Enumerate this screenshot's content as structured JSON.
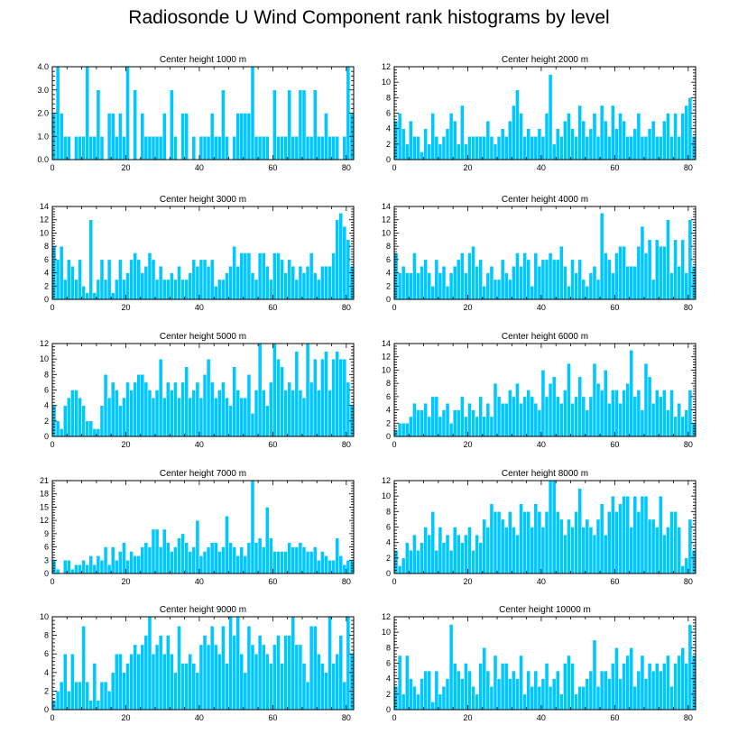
{
  "title": "Radiosonde U Wind Component rank histograms by level",
  "colors": {
    "bar_fill": "#00C8FF",
    "bar_edge": "#ffffff",
    "axis": "#000000"
  },
  "chart_data": [
    {
      "type": "bar",
      "title": "Center height 1000 m",
      "xlim": [
        0,
        82
      ],
      "ylim": [
        0,
        4
      ],
      "yticks": [
        0,
        1,
        2,
        3,
        4
      ],
      "ytick_labels": [
        "0.0",
        "1.0",
        "2.0",
        "3.0",
        "4.0"
      ],
      "xticks": [
        0,
        20,
        40,
        60,
        80
      ],
      "xtick_labels": [
        "0",
        "20",
        "40",
        "60",
        "80"
      ],
      "values": [
        2,
        4,
        2,
        1,
        1,
        0,
        1,
        1,
        1,
        4,
        1,
        1,
        3,
        1,
        0,
        2,
        2,
        1,
        2,
        1,
        4,
        0,
        3,
        0,
        2,
        1,
        1,
        1,
        1,
        1,
        2,
        0,
        3,
        1,
        0,
        2,
        2,
        0,
        1,
        0,
        1,
        1,
        1,
        2,
        1,
        1,
        3,
        1,
        0,
        1,
        2,
        2,
        2,
        2,
        4,
        1,
        1,
        1,
        1,
        0,
        3,
        1,
        1,
        1,
        3,
        1,
        1,
        3,
        3,
        1,
        1,
        3,
        1,
        1,
        2,
        1,
        1,
        1,
        0,
        1,
        4,
        2
      ]
    },
    {
      "type": "bar",
      "title": "Center height 2000 m",
      "xlim": [
        0,
        82
      ],
      "ylim": [
        0,
        12
      ],
      "yticks": [
        0,
        2,
        4,
        6,
        8,
        10,
        12
      ],
      "ytick_labels": [
        "0",
        "2",
        "4",
        "6",
        "8",
        "10",
        "12"
      ],
      "xticks": [
        0,
        20,
        40,
        60,
        80
      ],
      "xtick_labels": [
        "0",
        "20",
        "40",
        "60",
        "80"
      ],
      "values": [
        5,
        6,
        4,
        2,
        5,
        3,
        3,
        1,
        4,
        2,
        6,
        3,
        2,
        3,
        4,
        6,
        5,
        2,
        7,
        2,
        3,
        3,
        3,
        3,
        3,
        5,
        3,
        2,
        3,
        4,
        3,
        5,
        7,
        9,
        6,
        3,
        4,
        3,
        3,
        4,
        3,
        6,
        11,
        2,
        4,
        3,
        5,
        6,
        4,
        3,
        7,
        5,
        3,
        4,
        6,
        3,
        7,
        5,
        3,
        7,
        4,
        6,
        5,
        3,
        3,
        4,
        6,
        3,
        3,
        4,
        5,
        3,
        3,
        5,
        6,
        3,
        6,
        3,
        6,
        7,
        8,
        3
      ]
    },
    {
      "type": "bar",
      "title": "Center height 3000 m",
      "xlim": [
        0,
        82
      ],
      "ylim": [
        0,
        14
      ],
      "yticks": [
        0,
        2,
        4,
        6,
        8,
        10,
        12,
        14
      ],
      "ytick_labels": [
        "0",
        "2",
        "4",
        "6",
        "8",
        "10",
        "12",
        "14"
      ],
      "xticks": [
        0,
        20,
        40,
        60,
        80
      ],
      "xtick_labels": [
        "0",
        "20",
        "40",
        "60",
        "80"
      ],
      "values": [
        8,
        6,
        8,
        3,
        6,
        5,
        3,
        6,
        2,
        1,
        12,
        1,
        3,
        6,
        3,
        6,
        1,
        3,
        6,
        3,
        4,
        6,
        7,
        6,
        4,
        5,
        7,
        6,
        3,
        5,
        3,
        3,
        4,
        3,
        5,
        3,
        3,
        4,
        6,
        5,
        6,
        6,
        5,
        6,
        2,
        3,
        3,
        4,
        5,
        8,
        5,
        7,
        7,
        7,
        4,
        3,
        7,
        7,
        5,
        3,
        7,
        7,
        6,
        4,
        6,
        5,
        3,
        5,
        4,
        5,
        7,
        4,
        3,
        5,
        5,
        5,
        7,
        12,
        13,
        11,
        9,
        5
      ]
    },
    {
      "type": "bar",
      "title": "Center height 4000 m",
      "xlim": [
        0,
        82
      ],
      "ylim": [
        0,
        14
      ],
      "yticks": [
        0,
        2,
        4,
        6,
        8,
        10,
        12,
        14
      ],
      "ytick_labels": [
        "0",
        "2",
        "4",
        "6",
        "8",
        "10",
        "12",
        "14"
      ],
      "xticks": [
        0,
        20,
        40,
        60,
        80
      ],
      "xtick_labels": [
        "0",
        "20",
        "40",
        "60",
        "80"
      ],
      "values": [
        7,
        4,
        5,
        4,
        4,
        7,
        4,
        5,
        6,
        4,
        2,
        6,
        4,
        5,
        2,
        4,
        5,
        6,
        7,
        4,
        7,
        8,
        5,
        6,
        2,
        4,
        5,
        3,
        3,
        6,
        4,
        3,
        5,
        7,
        5,
        7,
        6,
        2,
        7,
        5,
        6,
        6,
        7,
        6,
        6,
        8,
        5,
        2,
        6,
        4,
        6,
        3,
        2,
        4,
        5,
        3,
        13,
        7,
        6,
        4,
        7,
        8,
        8,
        5,
        5,
        5,
        8,
        11,
        7,
        9,
        3,
        9,
        8,
        8,
        12,
        4,
        9,
        5,
        9,
        4,
        12,
        5
      ]
    },
    {
      "type": "bar",
      "title": "Center height 5000 m",
      "xlim": [
        0,
        82
      ],
      "ylim": [
        0,
        12
      ],
      "yticks": [
        0,
        2,
        4,
        6,
        8,
        10,
        12
      ],
      "ytick_labels": [
        "0",
        "2",
        "4",
        "6",
        "8",
        "10",
        "12"
      ],
      "xticks": [
        0,
        20,
        40,
        60,
        80
      ],
      "xtick_labels": [
        "0",
        "20",
        "40",
        "60",
        "80"
      ],
      "values": [
        4,
        2,
        1,
        4,
        5,
        6,
        6,
        5,
        4,
        2,
        2,
        1,
        1,
        4,
        8,
        5,
        7,
        6,
        4,
        5,
        7,
        6,
        7,
        8,
        8,
        7,
        6,
        5,
        6,
        10,
        5,
        7,
        6,
        7,
        5,
        7,
        9,
        5,
        6,
        7,
        5,
        8,
        10,
        7,
        5,
        6,
        7,
        5,
        4,
        9,
        6,
        5,
        5,
        8,
        3,
        6,
        12,
        6,
        4,
        7,
        12,
        10,
        9,
        6,
        7,
        6,
        11,
        6,
        5,
        12,
        7,
        10,
        6,
        10,
        11,
        6,
        10,
        11,
        10,
        10,
        7,
        4
      ]
    },
    {
      "type": "bar",
      "title": "Center height 6000 m",
      "xlim": [
        0,
        82
      ],
      "ylim": [
        0,
        14
      ],
      "yticks": [
        0,
        2,
        4,
        6,
        8,
        10,
        12,
        14
      ],
      "ytick_labels": [
        "0",
        "2",
        "4",
        "6",
        "8",
        "10",
        "12",
        "14"
      ],
      "xticks": [
        0,
        20,
        40,
        60,
        80
      ],
      "xtick_labels": [
        "0",
        "20",
        "40",
        "60",
        "80"
      ],
      "values": [
        1,
        2,
        2,
        2,
        3,
        5,
        4,
        4,
        5,
        3,
        6,
        6,
        3,
        4,
        5,
        2,
        4,
        4,
        6,
        3,
        5,
        4,
        3,
        6,
        3,
        5,
        3,
        8,
        6,
        5,
        5,
        7,
        6,
        8,
        5,
        6,
        7,
        6,
        5,
        4,
        10,
        6,
        8,
        9,
        6,
        5,
        7,
        11,
        5,
        6,
        9,
        6,
        4,
        6,
        11,
        8,
        7,
        10,
        5,
        7,
        7,
        5,
        7,
        8,
        13,
        6,
        7,
        4,
        11,
        9,
        5,
        7,
        6,
        7,
        4,
        7,
        3,
        5,
        3,
        4,
        7,
        2
      ]
    },
    {
      "type": "bar",
      "title": "Center height 7000 m",
      "xlim": [
        0,
        82
      ],
      "ylim": [
        0,
        21
      ],
      "yticks": [
        0,
        3,
        6,
        9,
        12,
        15,
        18,
        21
      ],
      "ytick_labels": [
        "0",
        "3",
        "6",
        "9",
        "12",
        "15",
        "18",
        "21"
      ],
      "xticks": [
        0,
        20,
        40,
        60,
        80
      ],
      "xtick_labels": [
        "0",
        "20",
        "40",
        "60",
        "80"
      ],
      "values": [
        3,
        1,
        0,
        3,
        3,
        1,
        2,
        2,
        3,
        2,
        4,
        2,
        4,
        3,
        6,
        2,
        6,
        3,
        5,
        7,
        3,
        5,
        4,
        4,
        6,
        7,
        6,
        10,
        10,
        6,
        10,
        7,
        5,
        6,
        8,
        9,
        7,
        5,
        6,
        12,
        4,
        5,
        6,
        7,
        7,
        5,
        6,
        13,
        7,
        6,
        4,
        6,
        4,
        7,
        21,
        7,
        8,
        6,
        15,
        8,
        5,
        5,
        5,
        5,
        7,
        6,
        6,
        7,
        6,
        5,
        5,
        6,
        3,
        5,
        4,
        3,
        3,
        8,
        4,
        2,
        3,
        3
      ]
    },
    {
      "type": "bar",
      "title": "Center height 8000 m",
      "xlim": [
        0,
        82
      ],
      "ylim": [
        0,
        12
      ],
      "yticks": [
        0,
        2,
        4,
        6,
        8,
        10,
        12
      ],
      "ytick_labels": [
        "0",
        "2",
        "4",
        "6",
        "8",
        "10",
        "12"
      ],
      "xticks": [
        0,
        20,
        40,
        60,
        80
      ],
      "xtick_labels": [
        "0",
        "20",
        "40",
        "60",
        "80"
      ],
      "values": [
        3,
        1,
        2,
        4,
        3,
        5,
        3,
        4,
        6,
        5,
        8,
        3,
        6,
        4,
        5,
        3,
        6,
        5,
        4,
        5,
        6,
        3,
        5,
        4,
        7,
        6,
        9,
        8,
        8,
        7,
        6,
        8,
        6,
        5,
        9,
        8,
        8,
        6,
        9,
        8,
        6,
        8,
        12,
        12,
        8,
        7,
        5,
        7,
        6,
        8,
        11,
        6,
        7,
        6,
        5,
        7,
        9,
        5,
        8,
        10,
        8,
        9,
        10,
        10,
        6,
        10,
        8,
        10,
        10,
        7,
        7,
        6,
        10,
        5,
        6,
        8,
        8,
        6,
        1,
        2,
        7,
        3
      ]
    },
    {
      "type": "bar",
      "title": "Center height 9000 m",
      "xlim": [
        0,
        82
      ],
      "ylim": [
        0,
        10
      ],
      "yticks": [
        0,
        2,
        4,
        6,
        8,
        10
      ],
      "ytick_labels": [
        "0",
        "2",
        "4",
        "6",
        "8",
        "10"
      ],
      "xticks": [
        0,
        20,
        40,
        60,
        80
      ],
      "xtick_labels": [
        "0",
        "20",
        "40",
        "60",
        "80"
      ],
      "values": [
        1,
        2,
        3,
        6,
        2,
        6,
        3,
        3,
        9,
        3,
        1,
        5,
        1,
        3,
        3,
        2,
        4,
        6,
        6,
        4,
        5,
        6,
        7,
        6,
        7,
        8,
        10,
        6,
        7,
        8,
        6,
        8,
        6,
        4,
        9,
        5,
        5,
        6,
        5,
        4,
        7,
        8,
        7,
        9,
        7,
        6,
        9,
        5,
        10,
        8,
        10,
        6,
        4,
        9,
        7,
        6,
        8,
        7,
        6,
        5,
        7,
        8,
        5,
        8,
        8,
        10,
        7,
        7,
        5,
        3,
        9,
        9,
        6,
        5,
        4,
        10,
        5,
        6,
        8,
        3,
        10,
        6
      ]
    },
    {
      "type": "bar",
      "title": "Center height 10000 m",
      "xlim": [
        0,
        82
      ],
      "ylim": [
        0,
        12
      ],
      "yticks": [
        0,
        2,
        4,
        6,
        8,
        10,
        12
      ],
      "ytick_labels": [
        "0",
        "2",
        "4",
        "6",
        "8",
        "10",
        "12"
      ],
      "xticks": [
        0,
        20,
        40,
        60,
        80
      ],
      "xtick_labels": [
        "0",
        "20",
        "40",
        "60",
        "80"
      ],
      "values": [
        3,
        7,
        2,
        7,
        4,
        3,
        2,
        4,
        5,
        5,
        1,
        5,
        2,
        3,
        4,
        11,
        6,
        5,
        4,
        6,
        5,
        3,
        2,
        6,
        8,
        5,
        3,
        7,
        4,
        6,
        6,
        4,
        5,
        4,
        7,
        2,
        5,
        3,
        5,
        3,
        4,
        6,
        3,
        4,
        5,
        2,
        6,
        7,
        6,
        2,
        3,
        3,
        4,
        5,
        9,
        3,
        5,
        5,
        4,
        6,
        8,
        4,
        6,
        7,
        8,
        3,
        5,
        7,
        4,
        6,
        5,
        6,
        5,
        6,
        7,
        3,
        6,
        7,
        8,
        6,
        11,
        7
      ]
    }
  ]
}
